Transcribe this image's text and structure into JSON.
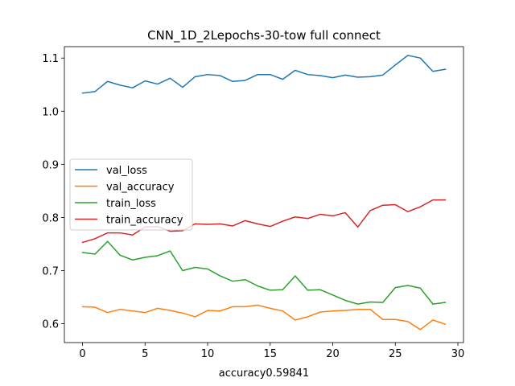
{
  "chart_data": {
    "type": "line",
    "title": "CNN_1D_2Lepochs-30-tow full connect",
    "xlabel": "accuracy0.59841",
    "ylabel": "",
    "xlim": [
      -1.45,
      30.45
    ],
    "ylim": [
      0.5645,
      1.1215
    ],
    "xticks": [
      0,
      5,
      10,
      15,
      20,
      25,
      30
    ],
    "yticks": [
      0.6,
      0.7,
      0.8,
      0.9,
      1.0,
      1.1
    ],
    "grid": false,
    "legend_position": "center-left",
    "x": [
      0,
      1,
      2,
      3,
      4,
      5,
      6,
      7,
      8,
      9,
      10,
      11,
      12,
      13,
      14,
      15,
      16,
      17,
      18,
      19,
      20,
      21,
      22,
      23,
      24,
      25,
      26,
      27,
      28,
      29
    ],
    "series": [
      {
        "name": "val_loss",
        "color": "#1f77b4",
        "values": [
          1.034,
          1.037,
          1.056,
          1.049,
          1.044,
          1.057,
          1.051,
          1.062,
          1.045,
          1.065,
          1.069,
          1.067,
          1.056,
          1.058,
          1.069,
          1.069,
          1.06,
          1.077,
          1.069,
          1.067,
          1.063,
          1.068,
          1.064,
          1.065,
          1.068,
          1.087,
          1.105,
          1.1,
          1.075,
          1.079
        ]
      },
      {
        "name": "val_accuracy",
        "color": "#ff7f0e",
        "values": [
          0.632,
          0.631,
          0.621,
          0.627,
          0.624,
          0.621,
          0.629,
          0.625,
          0.62,
          0.613,
          0.625,
          0.624,
          0.632,
          0.632,
          0.635,
          0.629,
          0.624,
          0.607,
          0.613,
          0.622,
          0.624,
          0.625,
          0.627,
          0.627,
          0.608,
          0.608,
          0.604,
          0.589,
          0.607,
          0.599
        ]
      },
      {
        "name": "train_loss",
        "color": "#2ca02c",
        "values": [
          0.734,
          0.731,
          0.755,
          0.729,
          0.72,
          0.725,
          0.728,
          0.737,
          0.7,
          0.706,
          0.703,
          0.69,
          0.68,
          0.683,
          0.671,
          0.663,
          0.664,
          0.69,
          0.663,
          0.664,
          0.654,
          0.644,
          0.637,
          0.641,
          0.64,
          0.668,
          0.672,
          0.667,
          0.637,
          0.64
        ]
      },
      {
        "name": "train_accuracy",
        "color": "#d62728",
        "values": [
          0.753,
          0.76,
          0.771,
          0.771,
          0.767,
          0.782,
          0.783,
          0.774,
          0.775,
          0.788,
          0.787,
          0.788,
          0.784,
          0.794,
          0.788,
          0.783,
          0.793,
          0.801,
          0.798,
          0.806,
          0.803,
          0.809,
          0.782,
          0.813,
          0.823,
          0.824,
          0.811,
          0.82,
          0.833,
          0.833
        ]
      }
    ]
  }
}
